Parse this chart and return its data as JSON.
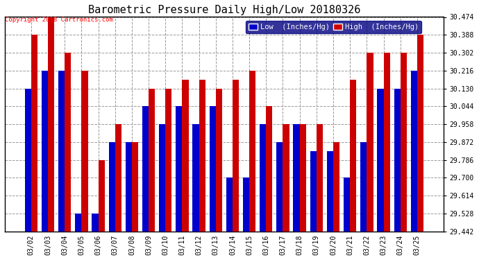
{
  "title": "Barometric Pressure Daily High/Low 20180326",
  "copyright": "Copyright 2018 Cartronics.com",
  "dates": [
    "03/02",
    "03/03",
    "03/04",
    "03/05",
    "03/06",
    "03/07",
    "03/08",
    "03/09",
    "03/10",
    "03/11",
    "03/12",
    "03/13",
    "03/14",
    "03/15",
    "03/16",
    "03/17",
    "03/18",
    "03/19",
    "03/20",
    "03/21",
    "03/22",
    "03/23",
    "03/24",
    "03/25"
  ],
  "low": [
    30.13,
    30.216,
    30.216,
    29.528,
    29.528,
    29.872,
    29.872,
    30.044,
    29.958,
    30.044,
    29.958,
    30.044,
    29.7,
    29.7,
    29.958,
    29.872,
    29.958,
    29.83,
    29.83,
    29.7,
    29.872,
    30.13,
    30.13,
    30.216
  ],
  "high": [
    30.388,
    30.474,
    30.302,
    30.216,
    29.786,
    29.958,
    29.872,
    30.13,
    30.13,
    30.172,
    30.172,
    30.13,
    30.172,
    30.216,
    30.044,
    29.958,
    29.958,
    29.958,
    29.872,
    30.172,
    30.302,
    30.302,
    30.302,
    30.388
  ],
  "ylim_min": 29.442,
  "ylim_max": 30.474,
  "yticks": [
    29.442,
    29.528,
    29.614,
    29.7,
    29.786,
    29.872,
    29.958,
    30.044,
    30.13,
    30.216,
    30.302,
    30.388,
    30.474
  ],
  "low_color": "#0000cc",
  "high_color": "#cc0000",
  "background_color": "#ffffff",
  "grid_color": "#999999",
  "bar_width": 0.38,
  "title_fontsize": 11,
  "tick_fontsize": 7,
  "legend_low_label": "Low  (Inches/Hg)",
  "legend_high_label": "High  (Inches/Hg)"
}
